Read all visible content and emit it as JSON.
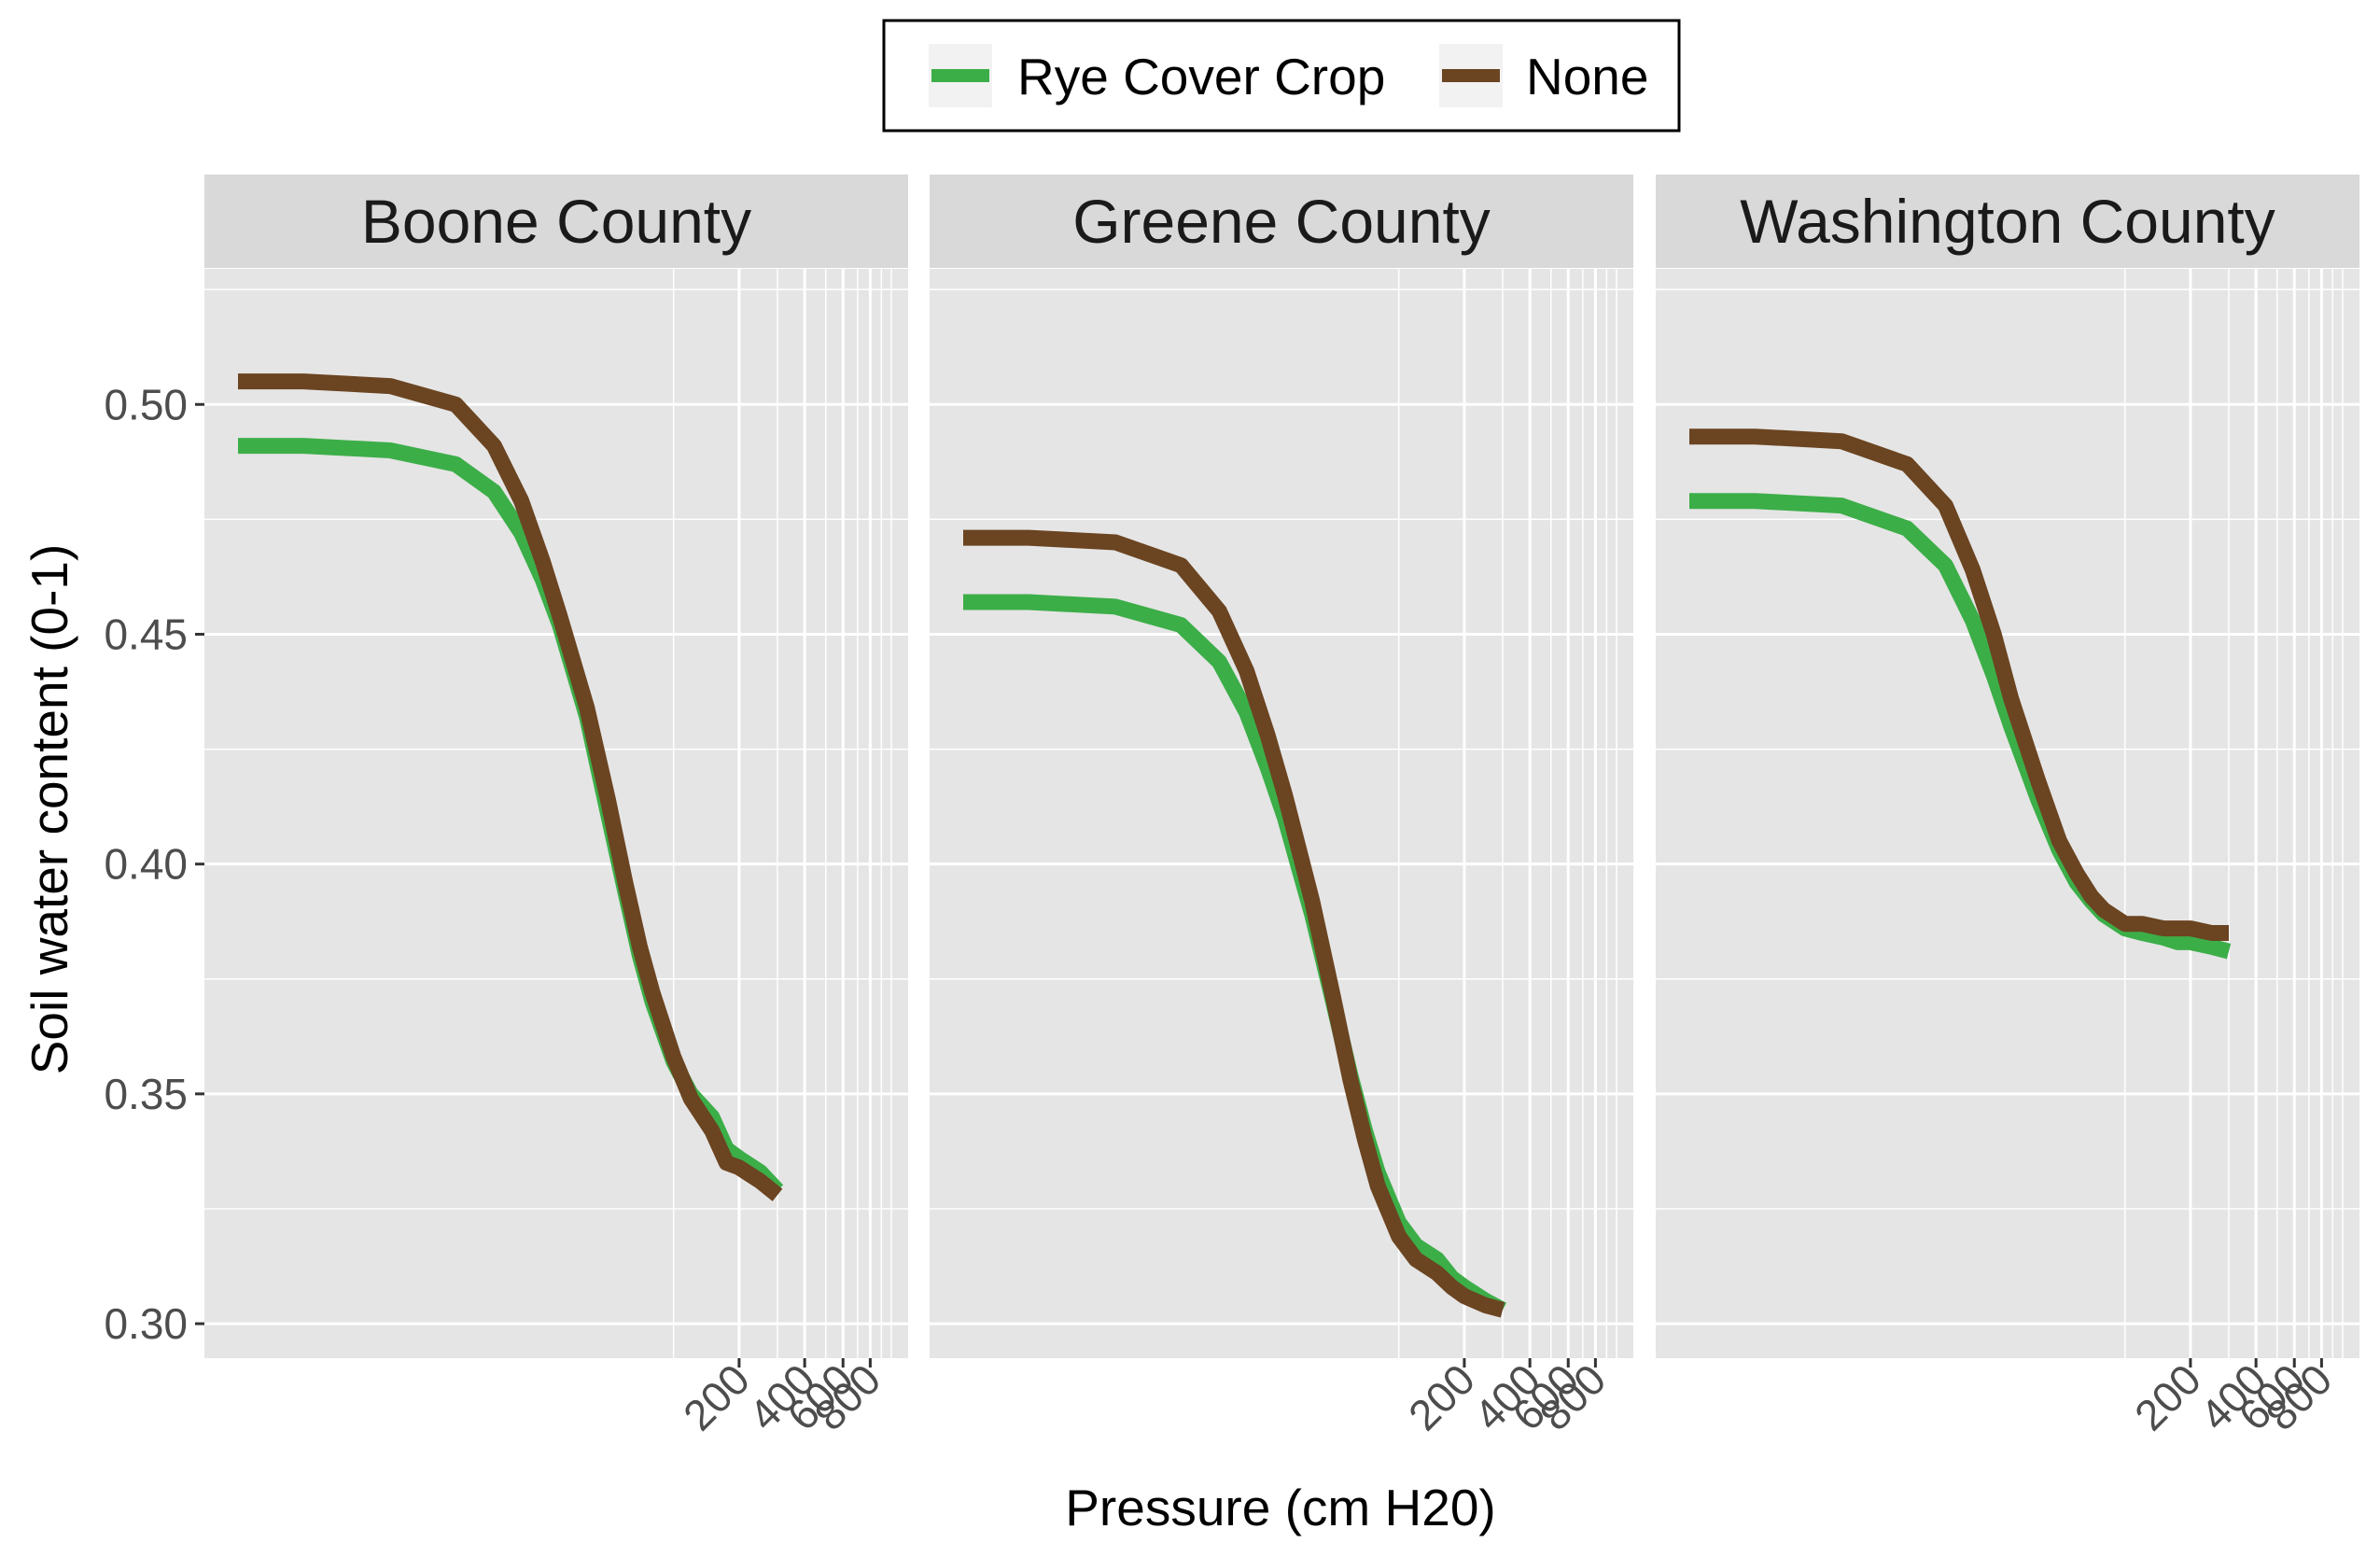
{
  "chart_data": {
    "type": "line",
    "title": "",
    "xlabel": "Pressure (cm H20)",
    "ylabel": "Soil water content (0-1)",
    "x_scale": "log10",
    "xlim": [
      1,
      1000
    ],
    "ylim": [
      0.2925,
      0.5295
    ],
    "y_ticks": [
      0.3,
      0.35,
      0.4,
      0.45,
      0.5
    ],
    "y_tick_labels": [
      "0.30",
      "0.35",
      "0.40",
      "0.45",
      "0.50"
    ],
    "x_ticks": [
      200,
      400,
      600,
      800
    ],
    "x_tick_labels": [
      "200",
      "400",
      "600",
      "800"
    ],
    "grid": true,
    "legend_position": "top",
    "legend": [
      {
        "name": "Rye Cover Crop",
        "color": "#3cae48"
      },
      {
        "name": "None",
        "color": "#6b4421"
      }
    ],
    "panels": [
      {
        "title": "Boone County",
        "series": [
          {
            "name": "Rye Cover Crop",
            "color": "#3cae48",
            "x": [
              1,
              2,
              5,
              10,
              15,
              20,
              25,
              30,
              40,
              50,
              60,
              70,
              80,
              100,
              120,
              150,
              175,
              200,
              250,
              300
            ],
            "y": [
              0.491,
              0.491,
              0.49,
              0.487,
              0.481,
              0.472,
              0.462,
              0.452,
              0.432,
              0.411,
              0.394,
              0.38,
              0.37,
              0.357,
              0.35,
              0.345,
              0.338,
              0.336,
              0.333,
              0.329
            ]
          },
          {
            "name": "None",
            "color": "#6b4421",
            "x": [
              1,
              2,
              5,
              10,
              15,
              20,
              25,
              30,
              40,
              50,
              60,
              70,
              80,
              100,
              120,
              150,
              175,
              200,
              250,
              300
            ],
            "y": [
              0.505,
              0.505,
              0.504,
              0.5,
              0.491,
              0.479,
              0.466,
              0.454,
              0.434,
              0.414,
              0.396,
              0.382,
              0.372,
              0.358,
              0.349,
              0.342,
              0.335,
              0.334,
              0.331,
              0.328
            ]
          }
        ]
      },
      {
        "title": "Greene County",
        "series": [
          {
            "name": "Rye Cover Crop",
            "color": "#3cae48",
            "x": [
              1,
              2,
              5,
              10,
              15,
              20,
              25,
              30,
              40,
              50,
              60,
              70,
              80,
              100,
              120,
              150,
              175,
              200,
              250,
              300
            ],
            "y": [
              0.457,
              0.457,
              0.456,
              0.452,
              0.444,
              0.433,
              0.421,
              0.41,
              0.389,
              0.37,
              0.354,
              0.342,
              0.333,
              0.322,
              0.317,
              0.314,
              0.31,
              0.308,
              0.305,
              0.303
            ]
          },
          {
            "name": "None",
            "color": "#6b4421",
            "x": [
              1,
              2,
              5,
              10,
              15,
              20,
              25,
              30,
              40,
              50,
              60,
              70,
              80,
              100,
              120,
              150,
              175,
              200,
              250,
              300
            ],
            "y": [
              0.471,
              0.471,
              0.47,
              0.465,
              0.455,
              0.442,
              0.428,
              0.415,
              0.392,
              0.371,
              0.353,
              0.34,
              0.33,
              0.319,
              0.314,
              0.311,
              0.308,
              0.306,
              0.304,
              0.303
            ]
          }
        ]
      },
      {
        "title": "Washington County",
        "series": [
          {
            "name": "Rye Cover Crop",
            "color": "#3cae48",
            "x": [
              1,
              2,
              5,
              10,
              15,
              20,
              25,
              30,
              40,
              50,
              60,
              70,
              80,
              100,
              120,
              150,
              175,
              200,
              250,
              300
            ],
            "y": [
              0.479,
              0.479,
              0.478,
              0.473,
              0.465,
              0.453,
              0.441,
              0.43,
              0.414,
              0.403,
              0.396,
              0.392,
              0.389,
              0.386,
              0.385,
              0.384,
              0.383,
              0.383,
              0.382,
              0.381
            ]
          },
          {
            "name": "None",
            "color": "#6b4421",
            "x": [
              1,
              2,
              5,
              10,
              15,
              20,
              25,
              30,
              40,
              50,
              60,
              70,
              80,
              100,
              120,
              150,
              175,
              200,
              250,
              300
            ],
            "y": [
              0.493,
              0.493,
              0.492,
              0.487,
              0.478,
              0.464,
              0.45,
              0.436,
              0.418,
              0.405,
              0.398,
              0.393,
              0.39,
              0.387,
              0.387,
              0.386,
              0.386,
              0.386,
              0.385,
              0.385
            ]
          }
        ]
      }
    ]
  }
}
